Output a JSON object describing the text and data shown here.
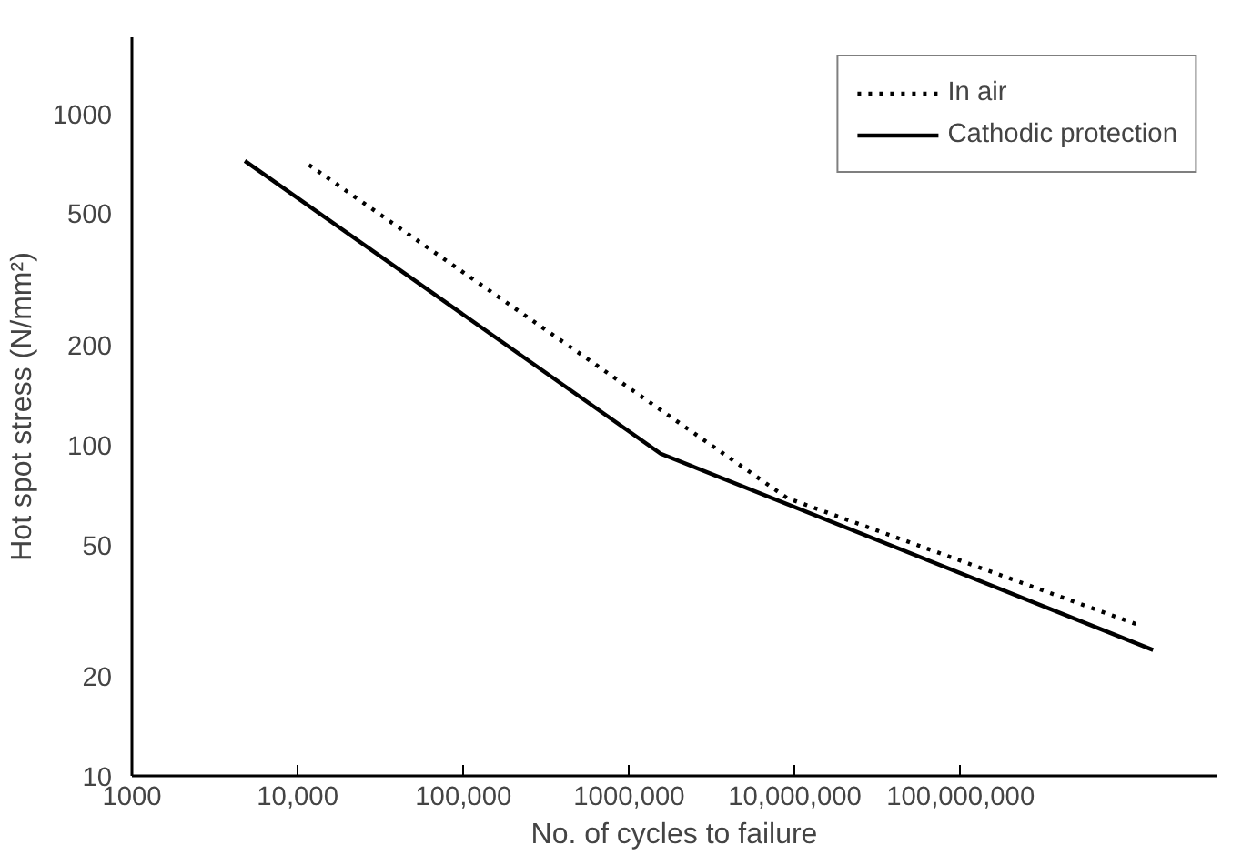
{
  "chart_data": {
    "type": "line",
    "xlabel": "No. of cycles to failure",
    "ylabel": "Hot spot stress (N/mm²)",
    "log": "xy",
    "grid": false,
    "legend": "top right",
    "xlim": [
      1000,
      3500000000
    ],
    "ylim": [
      10,
      1700
    ],
    "xticks": [
      1000,
      {
        "value": 10000,
        "label": "10,000"
      },
      {
        "value": 100000,
        "label": "100,000"
      },
      {
        "value": 1000000,
        "label": "1000,000"
      },
      {
        "value": 10000000,
        "label": "10,000,000"
      },
      {
        "value": 100000000,
        "label": "100,000,000"
      }
    ],
    "yticks": [
      10,
      20,
      50,
      100,
      200,
      500,
      1000
    ],
    "series": [
      {
        "name": "In air",
        "color": "#000000",
        "line_style": "dotted",
        "x": [
          11700,
          9000000,
          1200000000
        ],
        "values": [
          700,
          69,
          28.5
        ]
      },
      {
        "name": "Cathodic protection",
        "color": "#000000",
        "line_style": "solid",
        "x": [
          4800,
          1550000,
          1450000000
        ],
        "values": [
          720,
          94,
          24
        ]
      }
    ]
  }
}
